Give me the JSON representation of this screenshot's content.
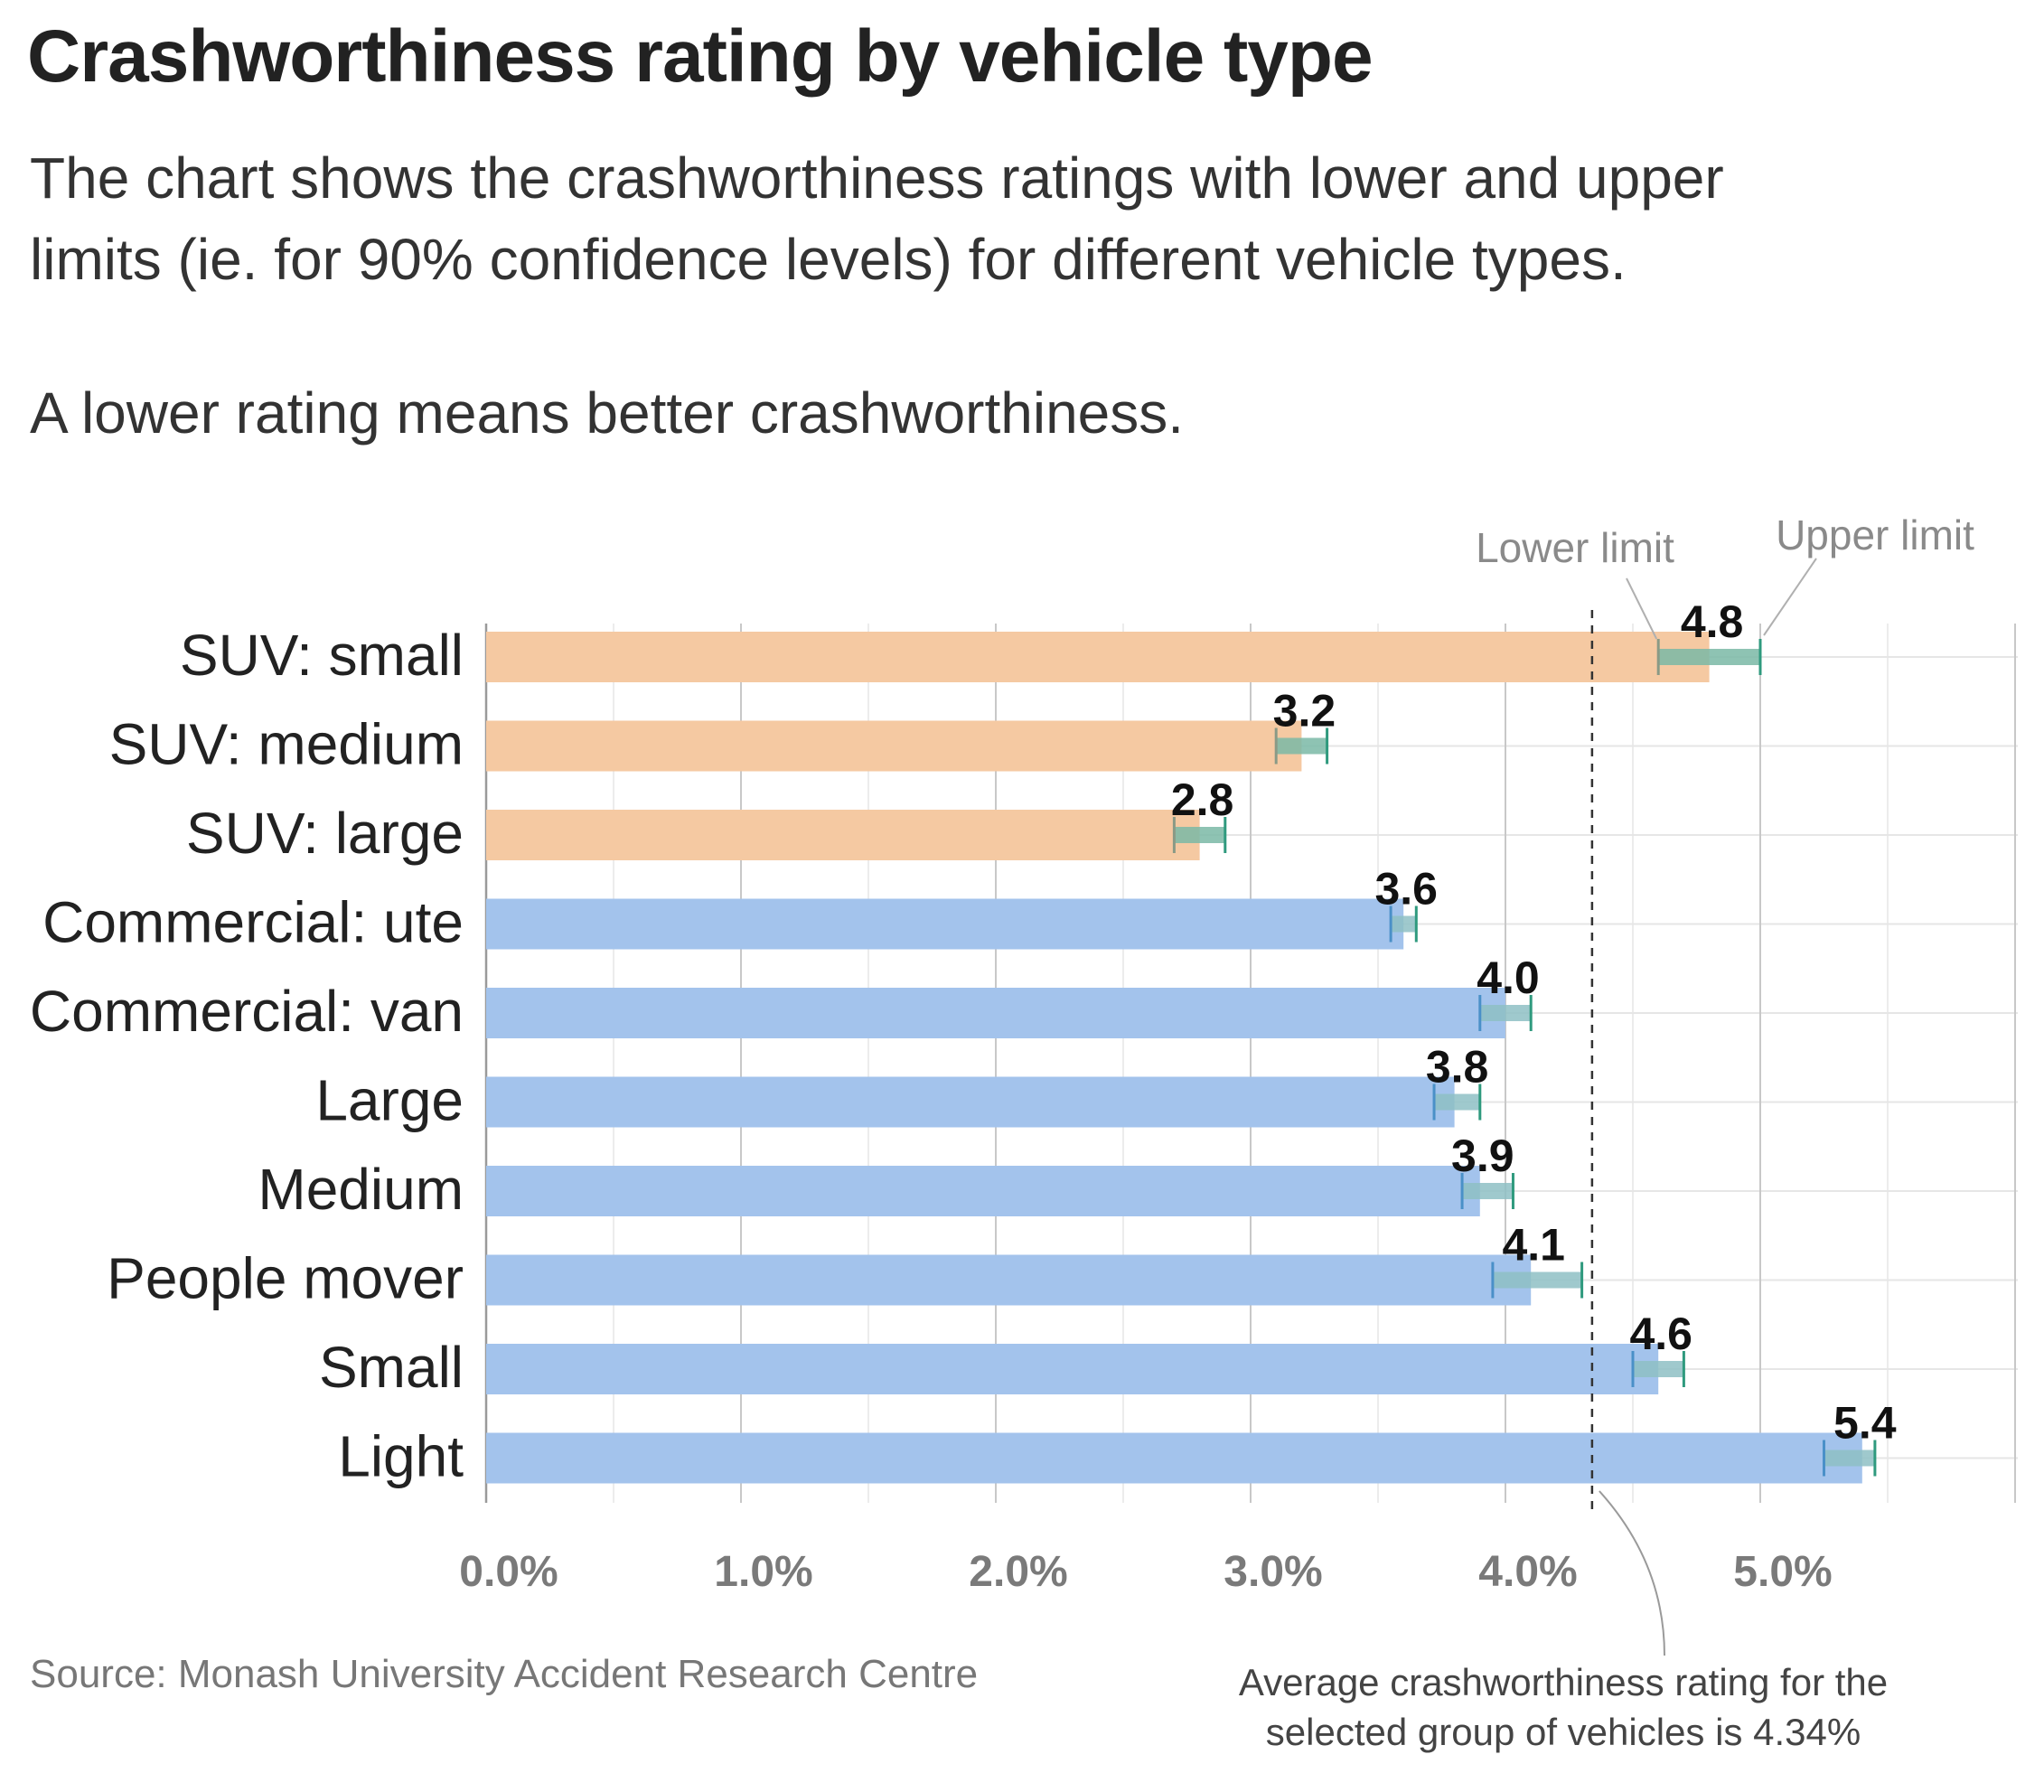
{
  "header": {
    "title": "Crashworthiness rating by vehicle type",
    "subtitle_line1": "The chart shows the crashworthiness ratings with lower and upper",
    "subtitle_line2": "limits (ie. for 90% confidence levels) for different vehicle types.",
    "subtitle_line3": "A lower rating means better crashworthiness."
  },
  "footer": {
    "source": "Source: Monash University Accident Research Centre",
    "average_note": "Average crashworthiness rating for the selected group of vehicles is 4.34%"
  },
  "chart_data": {
    "type": "bar",
    "orientation": "horizontal",
    "categories": [
      "SUV: small",
      "SUV: medium",
      "SUV: large",
      "Commercial: ute",
      "Commercial: van",
      "Large",
      "Medium",
      "People mover",
      "Small",
      "Light"
    ],
    "values": [
      4.8,
      3.2,
      2.8,
      3.6,
      4.0,
      3.8,
      3.9,
      4.1,
      4.6,
      5.4
    ],
    "value_labels": [
      "4.8",
      "3.2",
      "2.8",
      "3.6",
      "4.0",
      "3.8",
      "3.9",
      "4.1",
      "4.6",
      "5.4"
    ],
    "lower_limits": [
      4.6,
      3.1,
      2.7,
      3.55,
      3.9,
      3.72,
      3.83,
      3.95,
      4.5,
      5.25
    ],
    "upper_limits": [
      5.0,
      3.3,
      2.9,
      3.65,
      4.1,
      3.9,
      4.03,
      4.3,
      4.7,
      5.45
    ],
    "groups": [
      "SUV",
      "SUV",
      "SUV",
      "Other",
      "Other",
      "Other",
      "Other",
      "Other",
      "Other",
      "Other"
    ],
    "group_colors": {
      "SUV": "#f5c9a2",
      "Other": "#a3c3ec"
    },
    "interval_colors": {
      "SUV": "#7ab8a6",
      "Other": "#8ec0c4"
    },
    "tick_color": "#2f9a7e",
    "x_ticks": [
      "0.0%",
      "1.0%",
      "2.0%",
      "3.0%",
      "4.0%",
      "5.0%"
    ],
    "xlim": [
      0,
      6
    ],
    "reference_line": {
      "value": 4.34,
      "style": "dashed"
    },
    "annotations": {
      "lower_limit": "Lower limit",
      "upper_limit": "Upper limit"
    },
    "grid": true,
    "legend": "none"
  }
}
